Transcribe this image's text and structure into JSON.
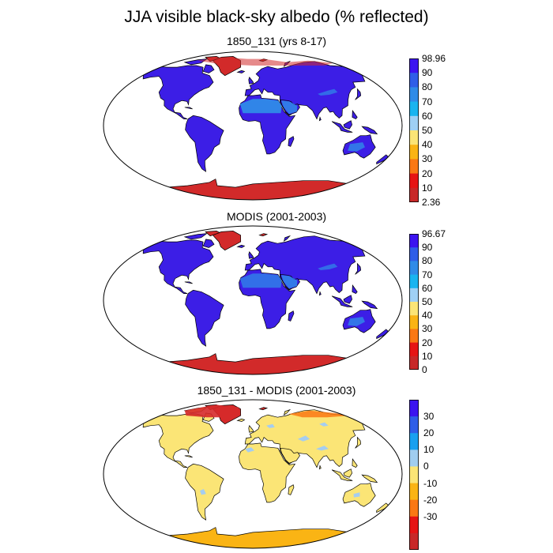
{
  "title": "JJA visible black-sky albedo (% reflected)",
  "colors": {
    "land_low": "#3c1ee6",
    "ice": "#d22a2a",
    "desert": "#2f8be8",
    "diff_land": "#fbe576",
    "diff_blue": "#a5cdf0",
    "diff_hi": "#d62a2a",
    "outline": "#000000"
  },
  "panels": [
    {
      "id": "model",
      "title": "1850_131 (yrs 8-17)",
      "colorbar": {
        "colors": [
          "#3c14f0",
          "#2f5ee8",
          "#2f8be8",
          "#19b4f0",
          "#9fd0f5",
          "#fbe576",
          "#fab414",
          "#fa7814",
          "#e61414",
          "#c82828"
        ],
        "labels": [
          "98.96",
          "90",
          "80",
          "70",
          "60",
          "50",
          "40",
          "30",
          "20",
          "10",
          "2.36"
        ]
      }
    },
    {
      "id": "modis",
      "title": "MODIS (2001-2003)",
      "colorbar": {
        "colors": [
          "#3c14f0",
          "#2f5ee8",
          "#2f8be8",
          "#19b4f0",
          "#9fd0f5",
          "#fbe576",
          "#fab414",
          "#fa7814",
          "#e61414",
          "#c82828"
        ],
        "labels": [
          "96.67",
          "90",
          "80",
          "70",
          "60",
          "50",
          "40",
          "30",
          "20",
          "10",
          "0"
        ]
      }
    },
    {
      "id": "diff",
      "title": "1850_131 - MODIS (2001-2003)",
      "colorbar": {
        "colors": [
          "#3c14f0",
          "#2f5ee8",
          "#19a0f0",
          "#a0cdf0",
          "#fbe576",
          "#fab414",
          "#fa7814",
          "#e61414",
          "#c82828"
        ],
        "labels": [
          "30",
          "20",
          "10",
          "0",
          "-10",
          "-20",
          "-30"
        ]
      }
    }
  ]
}
